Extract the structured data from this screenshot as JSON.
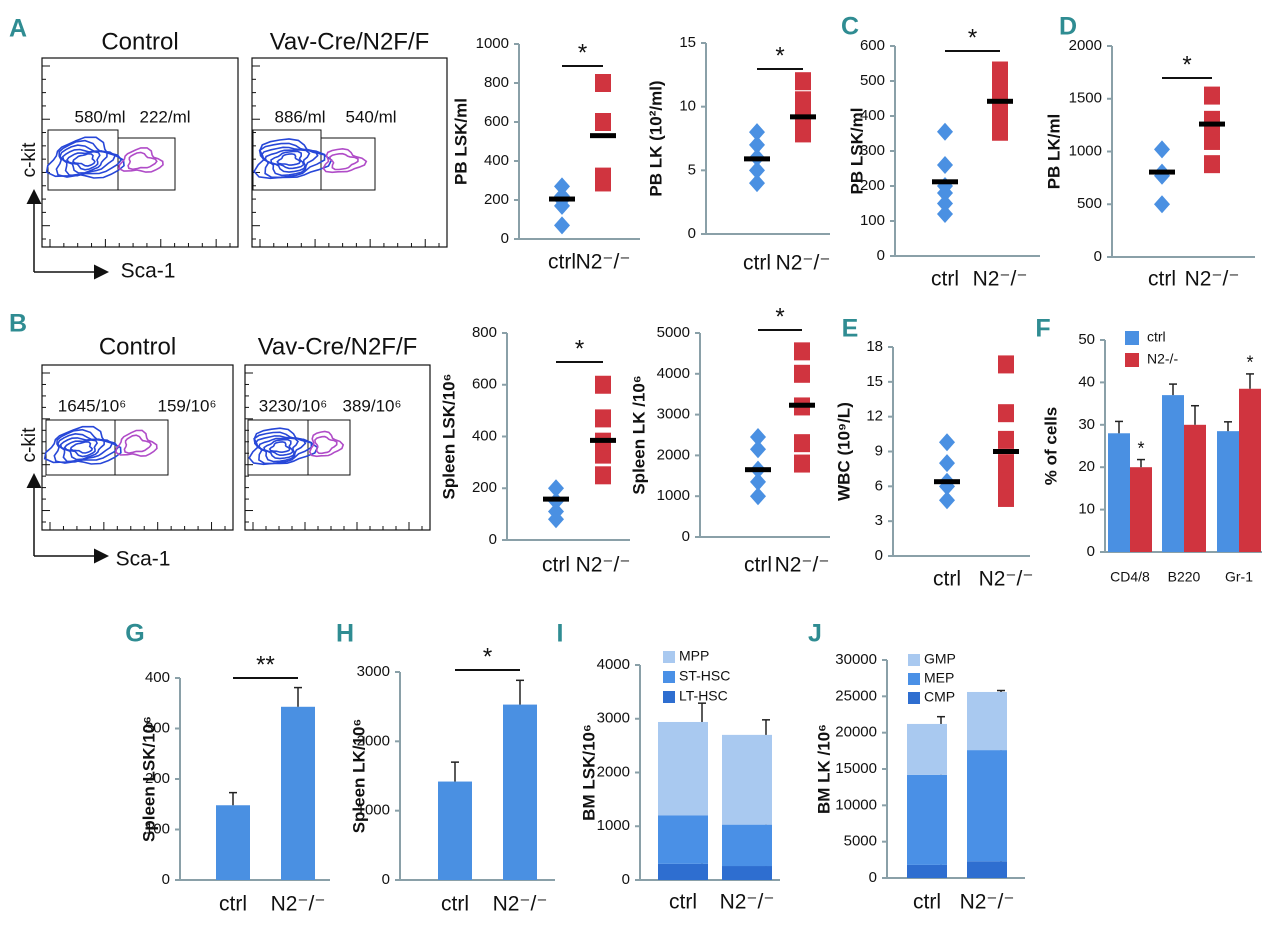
{
  "chart_data": [
    {
      "type": "flow",
      "panel": "A",
      "ylabel": "c-kit",
      "xlabel": "Sca-1",
      "plots": [
        {
          "title": "Control",
          "gates": [
            "580/ml",
            "222/ml"
          ]
        },
        {
          "title": "Vav-Cre/N2F/F",
          "gates": [
            "886/ml",
            "540/ml"
          ]
        }
      ]
    },
    {
      "type": "strip",
      "ylabel": "PB LSK/ml",
      "categories": [
        "ctrl",
        "N2⁻/⁻"
      ],
      "ylim": [
        0,
        1000
      ],
      "yticks": [
        0,
        200,
        400,
        600,
        800,
        1000
      ],
      "significance": "*",
      "series": [
        {
          "color": "#4a90e2",
          "marker": "diamond",
          "values": [
            70,
            170,
            200,
            220,
            270
          ],
          "mean": 205
        },
        {
          "color": "#d0343f",
          "marker": "square",
          "values": [
            290,
            320,
            600,
            800
          ],
          "mean": 530
        }
      ]
    },
    {
      "type": "strip",
      "ylabel": "PB LK (10²/ml)",
      "categories": [
        "ctrl",
        "N2⁻/⁻"
      ],
      "ylim": [
        0,
        15
      ],
      "yticks": [
        0,
        5,
        10,
        15
      ],
      "significance": "*",
      "series": [
        {
          "color": "#4a90e2",
          "marker": "diamond",
          "values": [
            4,
            5,
            6,
            7,
            8
          ],
          "mean": 5.9
        },
        {
          "color": "#d0343f",
          "marker": "square",
          "values": [
            7.9,
            8.5,
            9.5,
            10.5,
            12
          ],
          "mean": 9.2
        }
      ]
    },
    {
      "type": "strip",
      "panel": "C",
      "ylabel": "PB LSK/ml",
      "categories": [
        "ctrl",
        "N2⁻/⁻"
      ],
      "ylim": [
        0,
        600
      ],
      "yticks": [
        0,
        100,
        200,
        300,
        400,
        500,
        600
      ],
      "significance": "*",
      "series": [
        {
          "color": "#4a90e2",
          "marker": "diamond",
          "values": [
            120,
            150,
            180,
            200,
            260,
            355
          ],
          "mean": 212
        },
        {
          "color": "#d0343f",
          "marker": "square",
          "values": [
            355,
            390,
            420,
            445,
            480,
            530
          ],
          "mean": 442
        }
      ]
    },
    {
      "type": "strip",
      "panel": "D",
      "ylabel": "PB LK/ml",
      "categories": [
        "ctrl",
        "N2⁻/⁻"
      ],
      "ylim": [
        0,
        2000
      ],
      "yticks": [
        0,
        500,
        1000,
        1500,
        2000
      ],
      "significance": "*",
      "series": [
        {
          "color": "#4a90e2",
          "marker": "diamond",
          "values": [
            500,
            770,
            800,
            1020
          ],
          "mean": 805
        },
        {
          "color": "#d0343f",
          "marker": "square",
          "values": [
            880,
            1100,
            1250,
            1300,
            1530
          ],
          "mean": 1260
        }
      ]
    },
    {
      "type": "flow",
      "panel": "B",
      "ylabel": "c-kit",
      "xlabel": "Sca-1",
      "plots": [
        {
          "title": "Control",
          "gates": [
            "1645/10⁶",
            "159/10⁶"
          ]
        },
        {
          "title": "Vav-Cre/N2F/F",
          "gates": [
            "3230/10⁶",
            "389/10⁶"
          ]
        }
      ]
    },
    {
      "type": "strip",
      "ylabel": "Spleen LSK/10⁶",
      "categories": [
        "ctrl",
        "N2⁻/⁻"
      ],
      "ylim": [
        0,
        800
      ],
      "yticks": [
        0,
        200,
        400,
        600,
        800
      ],
      "significance": "*",
      "series": [
        {
          "color": "#4a90e2",
          "marker": "diamond",
          "values": [
            80,
            110,
            150,
            200
          ],
          "mean": 158
        },
        {
          "color": "#d0343f",
          "marker": "square",
          "values": [
            250,
            330,
            380,
            470,
            600
          ],
          "mean": 385
        }
      ]
    },
    {
      "type": "strip",
      "ylabel": "Spleen LK /10⁶",
      "categories": [
        "ctrl",
        "N2⁻/⁻"
      ],
      "ylim": [
        0,
        5000
      ],
      "yticks": [
        0,
        1000,
        2000,
        3000,
        4000,
        5000
      ],
      "significance": "*",
      "series": [
        {
          "color": "#4a90e2",
          "marker": "diamond",
          "values": [
            1000,
            1350,
            1650,
            2150,
            2450
          ],
          "mean": 1650
        },
        {
          "color": "#d0343f",
          "marker": "square",
          "values": [
            1800,
            2300,
            3200,
            4000,
            4550
          ],
          "mean": 3230
        }
      ]
    },
    {
      "type": "strip",
      "panel": "E",
      "ylabel": "WBC (10⁹/L)",
      "categories": [
        "ctrl",
        "N2⁻/⁻"
      ],
      "ylim": [
        0,
        18
      ],
      "yticks": [
        0,
        3,
        6,
        9,
        12,
        15,
        18
      ],
      "series": [
        {
          "color": "#4a90e2",
          "marker": "diamond",
          "values": [
            4.8,
            6,
            6.4,
            8,
            9.8
          ],
          "mean": 6.4
        },
        {
          "color": "#d0343f",
          "marker": "square",
          "values": [
            5,
            6.5,
            8,
            10,
            12.3,
            16.5
          ],
          "mean": 9
        }
      ]
    },
    {
      "type": "bar",
      "panel": "F",
      "ylabel": "% of cells",
      "categories": [
        "CD4/8",
        "B220",
        "Gr-1"
      ],
      "ylim": [
        0,
        50
      ],
      "yticks": [
        0,
        10,
        20,
        30,
        40,
        50
      ],
      "series": [
        {
          "name": "ctrl",
          "color": "#4a90e2",
          "values": [
            28,
            37,
            28.5
          ],
          "errors": [
            2.8,
            2.6,
            2.2
          ]
        },
        {
          "name": "N2-/-",
          "color": "#d0343f",
          "values": [
            20,
            30,
            38.5
          ],
          "errors": [
            1.8,
            4.5,
            3.5
          ],
          "significance": [
            "*",
            null,
            "*"
          ]
        }
      ]
    },
    {
      "type": "bar",
      "panel": "G",
      "ylabel": "Spleen LSK/10⁶",
      "categories": [
        "ctrl",
        "N2⁻/⁻"
      ],
      "ylim": [
        0,
        400
      ],
      "yticks": [
        0,
        100,
        200,
        300,
        400
      ],
      "significance": "**",
      "series": [
        {
          "color": "#4a90e2",
          "values": [
            148,
            343
          ],
          "errors": [
            25,
            38
          ]
        }
      ]
    },
    {
      "type": "bar",
      "panel": "H",
      "ylabel": "Spleen LK/10⁶",
      "categories": [
        "ctrl",
        "N2⁻/⁻"
      ],
      "ylim": [
        0,
        3000
      ],
      "yticks": [
        0,
        1000,
        2000,
        3000
      ],
      "significance": "*",
      "series": [
        {
          "color": "#4a90e2",
          "values": [
            1420,
            2530
          ],
          "errors": [
            280,
            350
          ]
        }
      ]
    },
    {
      "type": "stacked_bar",
      "panel": "I",
      "ylabel": "BM LSK/10⁶",
      "categories": [
        "ctrl",
        "N2⁻/⁻"
      ],
      "ylim": [
        0,
        4000
      ],
      "yticks": [
        0,
        1000,
        2000,
        3000,
        4000
      ],
      "series": [
        {
          "name": "LT-HSC",
          "color": "#2e6ed0",
          "values": [
            300,
            260
          ],
          "errors": [
            30,
            30
          ]
        },
        {
          "name": "ST-HSC",
          "color": "#4a90e6",
          "values": [
            900,
            770
          ],
          "errors": [
            180,
            150
          ]
        },
        {
          "name": "MPP",
          "color": "#a9c9f0",
          "values": [
            1740,
            1670
          ],
          "errors": [
            350,
            280
          ]
        }
      ]
    },
    {
      "type": "stacked_bar",
      "panel": "J",
      "ylabel": "BM LK /10⁶",
      "categories": [
        "ctrl",
        "N2⁻/⁻"
      ],
      "ylim": [
        0,
        30000
      ],
      "yticks": [
        0,
        5000,
        10000,
        15000,
        20000,
        25000,
        30000
      ],
      "series": [
        {
          "name": "CMP",
          "color": "#2e6ed0",
          "values": [
            1800,
            2300
          ],
          "errors": [
            300,
            500
          ]
        },
        {
          "name": "MEP",
          "color": "#4a90e6",
          "values": [
            12400,
            15300
          ],
          "errors": [
            2500,
            2800
          ]
        },
        {
          "name": "GMP",
          "color": "#a9c9f0",
          "values": [
            7000,
            8000
          ],
          "errors": [
            1000,
            200
          ]
        }
      ]
    }
  ]
}
